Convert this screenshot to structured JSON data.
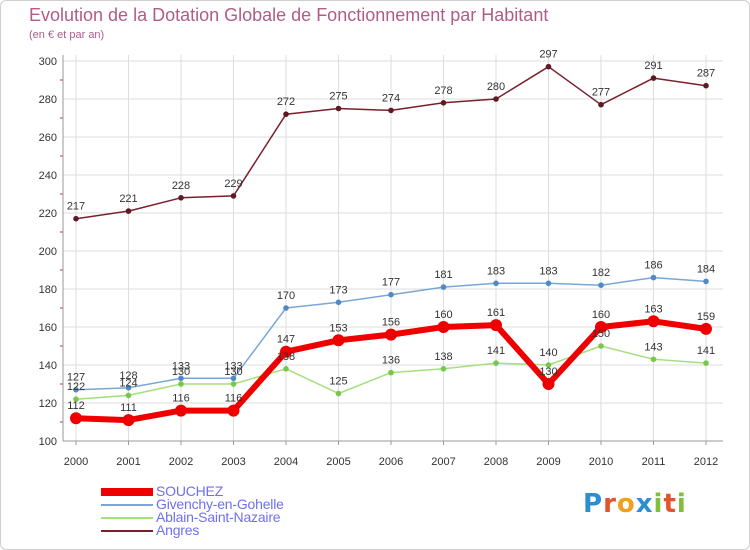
{
  "header": {
    "title": "Evolution de la Dotation Globale de Fonctionnement par Habitant",
    "subtitle": "(en € et par an)"
  },
  "logo": {
    "text": "Proxiti"
  },
  "colors": {
    "title": "#b05c88",
    "axis": "#999999",
    "grid": "#dddddd",
    "tick_text": "#333333",
    "legend_text": "#6f6ff0"
  },
  "chart_data": {
    "type": "line",
    "title": "Evolution de la Dotation Globale de Fonctionnement par Habitant",
    "subtitle": "(en € et par an)",
    "xlabel": "",
    "ylabel": "",
    "categories": [
      "2000",
      "2001",
      "2002",
      "2003",
      "2004",
      "2005",
      "2006",
      "2007",
      "2008",
      "2009",
      "2010",
      "2011",
      "2012"
    ],
    "yticks": [
      100,
      120,
      140,
      160,
      180,
      200,
      220,
      240,
      260,
      280,
      300
    ],
    "ylim": [
      100,
      300
    ],
    "grid": true,
    "legend_position": "bottom-left",
    "series": [
      {
        "name": "Angres",
        "color": "#7a1f2c",
        "point": "#5e1a22",
        "width": 1.5,
        "marker": 2.8,
        "values": [
          217,
          221,
          228,
          229,
          272,
          275,
          274,
          278,
          280,
          297,
          277,
          291,
          287
        ]
      },
      {
        "name": "Ablain-Saint-Nazaire",
        "color": "#a4e07c",
        "point": "#76c74a",
        "width": 1.5,
        "marker": 2.8,
        "values": [
          122,
          124,
          130,
          130,
          138,
          125,
          136,
          138,
          141,
          140,
          150,
          143,
          141
        ]
      },
      {
        "name": "Givenchy-en-Gohelle",
        "color": "#7ba6d4",
        "point": "#4f8ac6",
        "width": 1.5,
        "marker": 2.8,
        "values": [
          127,
          128,
          133,
          133,
          170,
          173,
          177,
          181,
          183,
          183,
          182,
          186,
          184
        ]
      },
      {
        "name": "SOUCHEZ",
        "color": "#ee0000",
        "point": "#ee0000",
        "width": 6,
        "marker": 6,
        "values": [
          112,
          111,
          116,
          116,
          147,
          153,
          156,
          160,
          161,
          130,
          160,
          163,
          159
        ]
      }
    ],
    "legend": [
      "SOUCHEZ",
      "Givenchy-en-Gohelle",
      "Ablain-Saint-Nazaire",
      "Angres"
    ]
  }
}
